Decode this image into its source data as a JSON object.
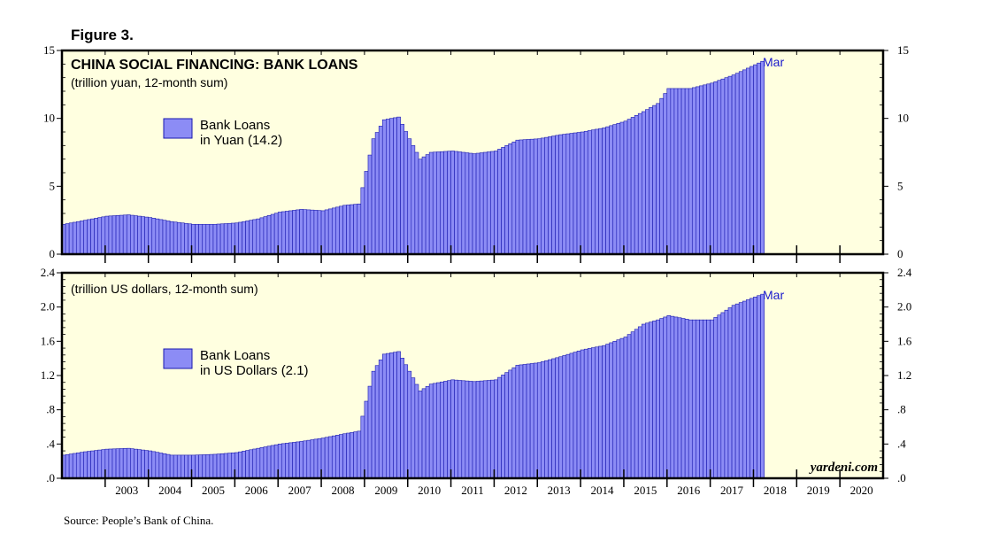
{
  "figure_label": "Figure 3.",
  "source": "Source: People’s Bank of China.",
  "watermark": "yardeni.com",
  "colors": {
    "bar": "#8c8cf5",
    "bar_edge": "#1a1ab0",
    "panel_bg": "#ffffe0",
    "accent": "#1a1acc"
  },
  "chart_data": [
    {
      "type": "bar",
      "title": "CHINA SOCIAL FINANCING: BANK LOANS",
      "subtitle": "(trillion yuan, 12-month sum)",
      "legend": "Bank Loans\nin Yuan (14.2)",
      "legend_position": "upper-left",
      "end_label": "Mar",
      "ylim": [
        0,
        15
      ],
      "yticks": [
        0,
        5,
        10,
        15
      ],
      "ytick_labels": [
        "0",
        "5",
        "10",
        "15"
      ],
      "x_start": "2002-01",
      "x_end": "2020-12",
      "series": [
        {
          "keys": [
            "2002-01",
            "2002-07",
            "2003-01",
            "2003-07",
            "2004-01",
            "2004-07",
            "2005-01",
            "2005-07",
            "2006-01",
            "2006-07",
            "2007-01",
            "2007-07",
            "2008-01",
            "2008-07",
            "2008-11",
            "2009-03",
            "2009-06",
            "2009-10",
            "2010-01",
            "2010-04",
            "2010-07",
            "2011-01",
            "2011-07",
            "2012-01",
            "2012-07",
            "2013-01",
            "2013-07",
            "2014-01",
            "2014-07",
            "2015-01",
            "2015-06",
            "2015-10",
            "2016-01",
            "2016-07",
            "2017-01",
            "2017-07",
            "2018-03"
          ],
          "values": [
            2.2,
            2.5,
            2.8,
            2.9,
            2.7,
            2.4,
            2.2,
            2.2,
            2.3,
            2.6,
            3.1,
            3.3,
            3.2,
            3.6,
            3.7,
            8.5,
            9.9,
            10.1,
            8.5,
            7.0,
            7.5,
            7.6,
            7.4,
            7.6,
            8.4,
            8.5,
            8.8,
            9.0,
            9.3,
            9.8,
            10.5,
            11.1,
            12.2,
            12.2,
            12.6,
            13.2,
            14.2
          ]
        }
      ]
    },
    {
      "type": "bar",
      "subtitle": "(trillion US dollars, 12-month sum)",
      "legend": "Bank Loans\nin US Dollars (2.1)",
      "legend_position": "upper-left",
      "end_label": "Mar",
      "ylim": [
        0,
        2.4
      ],
      "yticks": [
        0,
        0.4,
        0.8,
        1.2,
        1.6,
        2.0,
        2.4
      ],
      "ytick_labels": [
        ".0",
        ".4",
        ".8",
        "1.2",
        "1.6",
        "2.0",
        "2.4"
      ],
      "x_start": "2002-01",
      "x_end": "2020-12",
      "x_tick_labels": [
        "2003",
        "2004",
        "2005",
        "2006",
        "2007",
        "2008",
        "2009",
        "2010",
        "2011",
        "2012",
        "2013",
        "2014",
        "2015",
        "2016",
        "2017",
        "2018",
        "2019",
        "2020"
      ],
      "series": [
        {
          "keys": [
            "2002-01",
            "2002-07",
            "2003-01",
            "2003-07",
            "2004-01",
            "2004-07",
            "2005-01",
            "2005-07",
            "2006-01",
            "2006-07",
            "2007-01",
            "2007-07",
            "2008-01",
            "2008-07",
            "2008-11",
            "2009-03",
            "2009-06",
            "2009-10",
            "2010-01",
            "2010-04",
            "2010-07",
            "2011-01",
            "2011-07",
            "2012-01",
            "2012-07",
            "2013-01",
            "2013-07",
            "2014-01",
            "2014-07",
            "2015-01",
            "2015-06",
            "2015-10",
            "2016-01",
            "2016-07",
            "2017-01",
            "2017-07",
            "2018-03"
          ],
          "values": [
            0.27,
            0.31,
            0.34,
            0.35,
            0.32,
            0.27,
            0.27,
            0.28,
            0.3,
            0.35,
            0.4,
            0.43,
            0.47,
            0.52,
            0.55,
            1.25,
            1.45,
            1.48,
            1.25,
            1.02,
            1.1,
            1.15,
            1.13,
            1.15,
            1.32,
            1.35,
            1.42,
            1.5,
            1.55,
            1.65,
            1.8,
            1.85,
            1.9,
            1.85,
            1.85,
            2.02,
            2.15
          ]
        }
      ]
    }
  ]
}
